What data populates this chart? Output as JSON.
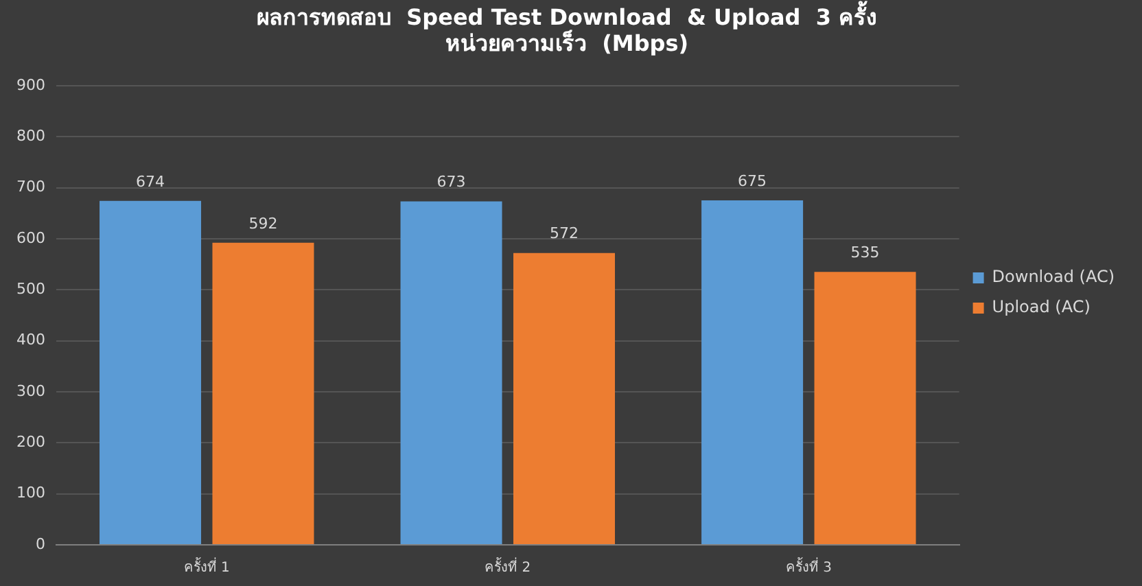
{
  "chart_data": {
    "type": "bar",
    "title": [
      "ผลการทดสอบ  Speed Test Download  & Upload  3 ครั้ง",
      "หน่วยความเร็ว  (Mbps)"
    ],
    "categories": [
      "ครั้งที่ 1",
      "ครั้งที่ 2",
      "ครั้งที่ 3"
    ],
    "series": [
      {
        "name": "Download (AC)",
        "color": "#5b9bd5",
        "values": [
          674,
          673,
          675
        ]
      },
      {
        "name": "Upload (AC)",
        "color": "#ed7d31",
        "values": [
          592,
          572,
          535
        ]
      }
    ],
    "ylim": [
      0,
      900
    ],
    "yticks": [
      0,
      100,
      200,
      300,
      400,
      500,
      600,
      700,
      800,
      900
    ],
    "grid": "y",
    "legend": "right",
    "data_labels": true
  }
}
